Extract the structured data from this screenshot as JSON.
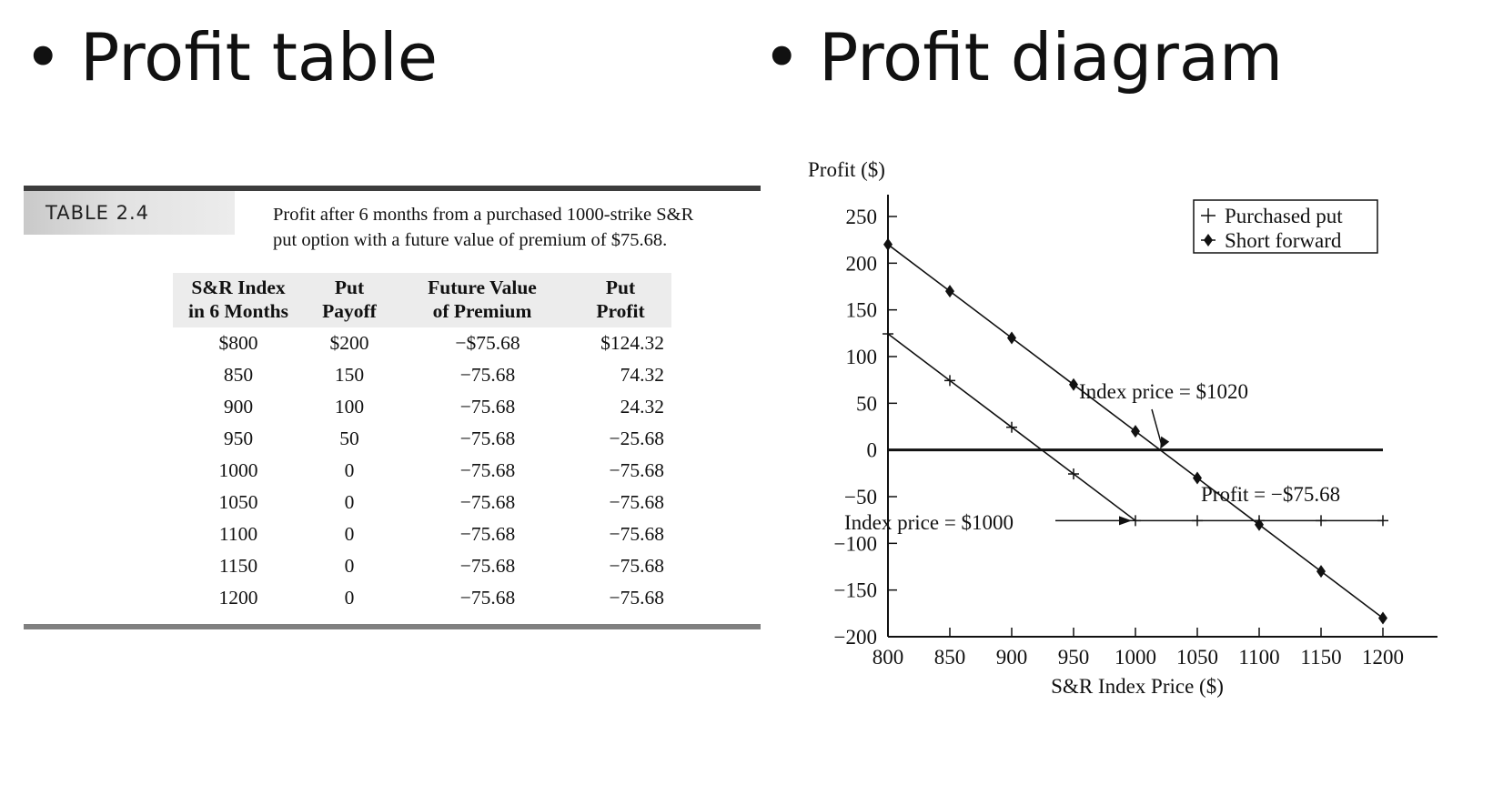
{
  "slide": {
    "left_heading": "Profit table",
    "right_heading": "Profit diagram",
    "bullet": "•"
  },
  "table": {
    "label": "TABLE 2.4",
    "caption_line1": "Profit after 6 months from a purchased 1000-strike S&R",
    "caption_line2": "put option with a future value of premium of $75.68.",
    "headers": [
      [
        "S&R Index",
        "in 6 Months"
      ],
      [
        "Put",
        "Payoff"
      ],
      [
        "Future Value",
        "of Premium"
      ],
      [
        "Put",
        "Profit"
      ]
    ],
    "rows": [
      [
        "$800",
        "$200",
        "−$75.68",
        "$124.32"
      ],
      [
        "850",
        "150",
        "−75.68",
        "74.32"
      ],
      [
        "900",
        "100",
        "−75.68",
        "24.32"
      ],
      [
        "950",
        "50",
        "−75.68",
        "−25.68"
      ],
      [
        "1000",
        "0",
        "−75.68",
        "−75.68"
      ],
      [
        "1050",
        "0",
        "−75.68",
        "−75.68"
      ],
      [
        "1100",
        "0",
        "−75.68",
        "−75.68"
      ],
      [
        "1150",
        "0",
        "−75.68",
        "−75.68"
      ],
      [
        "1200",
        "0",
        "−75.68",
        "−75.68"
      ]
    ]
  },
  "chart_data": {
    "type": "line",
    "ylabel": "Profit ($)",
    "xlabel": "S&R Index Price ($)",
    "xlim": [
      800,
      1200
    ],
    "ylim": [
      -200,
      250
    ],
    "x_ticks": [
      800,
      850,
      900,
      950,
      1000,
      1050,
      1100,
      1150,
      1200
    ],
    "y_ticks": [
      250,
      200,
      150,
      100,
      50,
      0,
      -50,
      -100,
      -150,
      -200
    ],
    "y_tick_labels": [
      "250",
      "200",
      "150",
      "100",
      "50",
      "0",
      "−50",
      "−100",
      "−150",
      "−200"
    ],
    "legend_position": "top-right",
    "series": [
      {
        "name": "Purchased put",
        "marker": "plus",
        "x": [
          800,
          850,
          900,
          950,
          1000,
          1050,
          1100,
          1150,
          1200
        ],
        "y": [
          124.32,
          74.32,
          24.32,
          -25.68,
          -75.68,
          -75.68,
          -75.68,
          -75.68,
          -75.68
        ]
      },
      {
        "name": "Short forward",
        "marker": "diamond",
        "x": [
          800,
          850,
          900,
          950,
          1000,
          1050,
          1100,
          1150,
          1200
        ],
        "y": [
          220,
          170,
          120,
          70,
          20,
          -30,
          -80,
          -130,
          -180
        ]
      }
    ],
    "annotations": [
      {
        "text": "Index price = $1020",
        "x": 1020,
        "y": 0
      },
      {
        "text": "Index price = $1000",
        "x": 1000,
        "y": -75.68
      },
      {
        "text": "Profit = −$75.68"
      }
    ]
  }
}
